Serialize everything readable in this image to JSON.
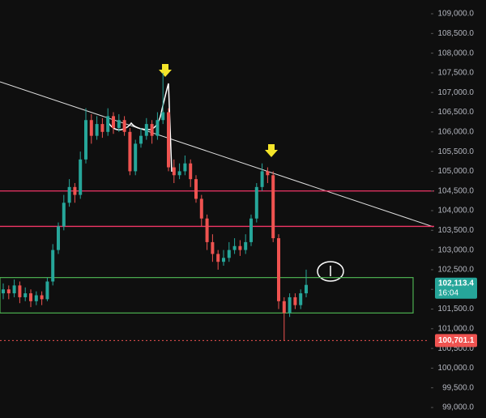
{
  "chart_data": {
    "type": "candlestick",
    "ylim": [
      98733,
      109350
    ],
    "yticks": [
      {
        "value": 109000,
        "label": "109,000.0"
      },
      {
        "value": 108500,
        "label": "108,500.0"
      },
      {
        "value": 108000,
        "label": "108,000.0"
      },
      {
        "value": 107500,
        "label": "107,500.0"
      },
      {
        "value": 107000,
        "label": "107,000.0"
      },
      {
        "value": 106500,
        "label": "106,500.0"
      },
      {
        "value": 106000,
        "label": "106,000.0"
      },
      {
        "value": 105500,
        "label": "105,500.0"
      },
      {
        "value": 105000,
        "label": "105,000.0"
      },
      {
        "value": 104500,
        "label": "104,500.0"
      },
      {
        "value": 104000,
        "label": "104,000.0"
      },
      {
        "value": 103500,
        "label": "103,500.0"
      },
      {
        "value": 103000,
        "label": "103,000.0"
      },
      {
        "value": 102500,
        "label": "102,500.0"
      },
      {
        "value": 102000,
        "label": "102,000.0"
      },
      {
        "value": 101500,
        "label": "101,500.0"
      },
      {
        "value": 101000,
        "label": "101,000.0"
      },
      {
        "value": 100500,
        "label": "100,500.0"
      },
      {
        "value": 100000,
        "label": "100,000.0"
      },
      {
        "value": 99500,
        "label": "99,500.0"
      },
      {
        "value": 99000,
        "label": "99,000.0"
      }
    ],
    "up_color": "#26a69a",
    "down_color": "#ef5350",
    "open": [
      101900,
      102000,
      101900,
      102100,
      101800,
      101900,
      101700,
      101850,
      101750,
      102200,
      103000,
      103600,
      104200,
      104600,
      104400,
      105300,
      106300,
      105900,
      106200,
      106000,
      106400,
      106100,
      106300,
      106000,
      105000,
      105700,
      105900,
      106200,
      105900,
      106300,
      106500,
      105100,
      104900,
      105000,
      105200,
      104800,
      104300,
      103800,
      103200,
      102900,
      102700,
      102800,
      103000,
      103100,
      103000,
      103200,
      103800,
      104600,
      105000,
      104900,
      103300,
      101700,
      101400,
      101800,
      101600,
      101900
    ],
    "high": [
      102150,
      102100,
      102250,
      102200,
      102050,
      102000,
      101950,
      101950,
      102300,
      103150,
      103700,
      104400,
      104800,
      104700,
      105500,
      106600,
      106450,
      106400,
      106350,
      106600,
      106500,
      106450,
      106400,
      106100,
      105800,
      106100,
      106350,
      106300,
      106500,
      107500,
      106600,
      105300,
      105200,
      105400,
      105300,
      104900,
      104400,
      103900,
      103400,
      103000,
      103000,
      103200,
      103300,
      103250,
      103400,
      103900,
      104700,
      105200,
      105100,
      105000,
      103400,
      101800,
      101900,
      101900,
      102000,
      102500
    ],
    "low": [
      101750,
      101750,
      101800,
      101650,
      101700,
      101550,
      101600,
      101600,
      101700,
      102100,
      102900,
      103500,
      104100,
      104200,
      104300,
      105200,
      105700,
      105800,
      105850,
      105900,
      105950,
      106000,
      105900,
      104900,
      104900,
      105600,
      105800,
      105700,
      105800,
      106200,
      105000,
      104700,
      104800,
      104900,
      104600,
      104200,
      103600,
      103000,
      102700,
      102500,
      102600,
      102700,
      102900,
      102850,
      102900,
      103100,
      103700,
      104500,
      104700,
      103200,
      101500,
      100701.1,
      101300,
      101500,
      101500,
      101800
    ],
    "close": [
      102000,
      101900,
      102100,
      101800,
      101900,
      101700,
      101850,
      101750,
      102200,
      103000,
      103600,
      104200,
      104600,
      104400,
      105300,
      106300,
      105900,
      106200,
      106000,
      106400,
      106100,
      106300,
      106000,
      105000,
      105700,
      105900,
      106200,
      105900,
      106300,
      106500,
      105100,
      104900,
      105000,
      105200,
      104800,
      104300,
      103800,
      103200,
      102900,
      102700,
      102800,
      103000,
      103100,
      103000,
      103200,
      103800,
      104600,
      105000,
      104900,
      103300,
      101700,
      101400,
      101800,
      101600,
      101900,
      102113.4
    ],
    "hlines": [
      104500,
      103600
    ],
    "hline_color": "#f23667",
    "zone": [
      101400,
      102300
    ],
    "zone_color": "#4caf50",
    "last_price": {
      "value": 102113.4,
      "label": "102,113.4",
      "time": "16:04"
    },
    "low_price": {
      "value": 100701.1,
      "label": "100,701.1"
    }
  }
}
